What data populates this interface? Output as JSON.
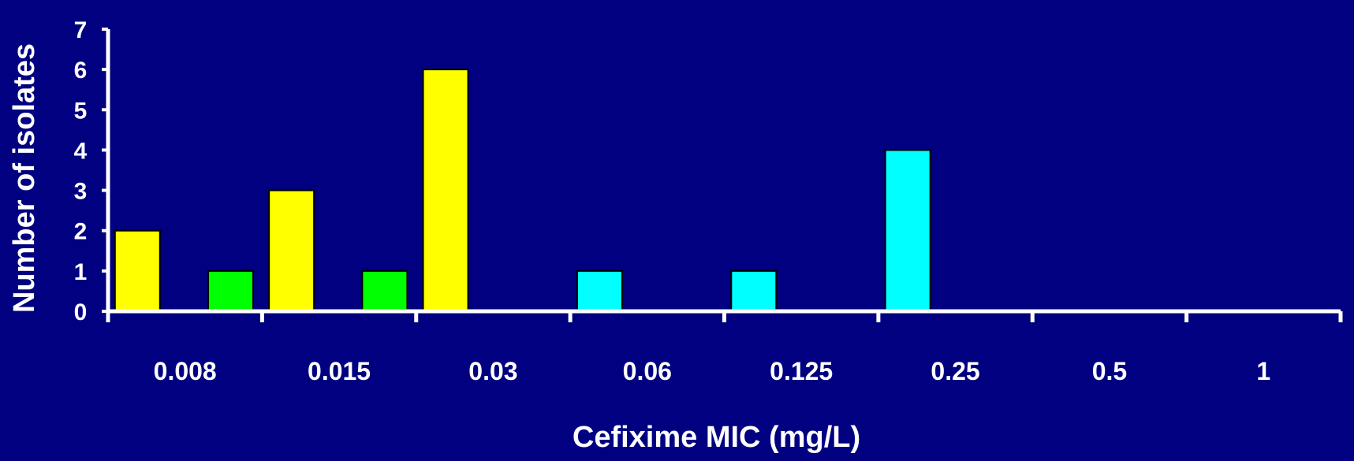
{
  "chart_data": {
    "type": "bar",
    "xlabel": "Cefixime MIC (mg/L)",
    "ylabel": "Number of isolates",
    "ylim": [
      0,
      7
    ],
    "yticks": [
      0,
      1,
      2,
      3,
      4,
      5,
      6,
      7
    ],
    "categories": [
      "0.008",
      "0.015",
      "0.03",
      "0.06",
      "0.125",
      "0.25",
      "0.5",
      "1"
    ],
    "series": [
      {
        "color": "#ffff00",
        "values": [
          2,
          3,
          6,
          0,
          0,
          0,
          0,
          0
        ]
      },
      {
        "color": "#00ff00",
        "values": [
          1,
          1,
          0,
          0,
          0,
          0,
          0,
          0
        ]
      },
      {
        "color": "#00ffff",
        "values": [
          0,
          0,
          0,
          1,
          1,
          4,
          0,
          0
        ]
      }
    ],
    "bars": [
      {
        "category": "0.008",
        "value": 2,
        "color": "#ffff00"
      },
      {
        "category": "0.008",
        "value": 1,
        "color": "#00ff00"
      },
      {
        "category": "0.015",
        "value": 3,
        "color": "#ffff00"
      },
      {
        "category": "0.015",
        "value": 1,
        "color": "#00ff00"
      },
      {
        "category": "0.03",
        "value": 6,
        "color": "#ffff00"
      },
      {
        "category": "0.06",
        "value": 1,
        "color": "#00ffff"
      },
      {
        "category": "0.125",
        "value": 1,
        "color": "#00ffff"
      },
      {
        "category": "0.25",
        "value": 4,
        "color": "#00ffff"
      }
    ],
    "grid": false,
    "legend": "none",
    "background": "#000080",
    "axis_color": "#ffffff"
  }
}
